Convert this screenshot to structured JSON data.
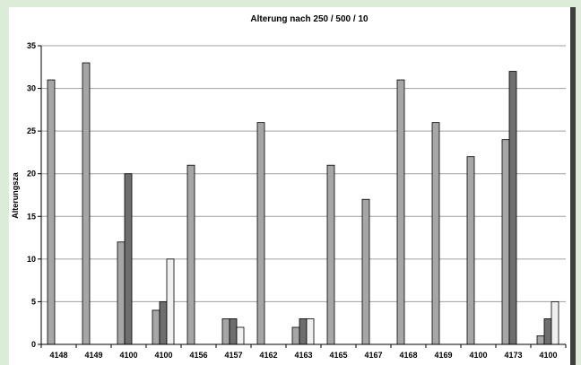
{
  "chart_data": {
    "type": "bar",
    "title": "Alterung nach 250 / 500 / 10",
    "ylabel": "Alterungsza",
    "xlabel": "",
    "ylim": [
      0,
      35
    ],
    "yticks": [
      0,
      5,
      10,
      15,
      20,
      25,
      30,
      35
    ],
    "grid": true,
    "categories": [
      "4148",
      "4149",
      "4100",
      "4100",
      "4156",
      "4157",
      "4162",
      "4163",
      "4165",
      "4167",
      "4168",
      "4169",
      "4100",
      "4173",
      "4100"
    ],
    "series": [
      {
        "values": [
          31,
          33,
          12,
          4,
          21,
          3,
          26,
          2,
          21,
          17,
          31,
          26,
          22,
          24,
          1
        ]
      },
      {
        "values": [
          0,
          0,
          20,
          5,
          0,
          3,
          0,
          3,
          0,
          0,
          0,
          0,
          0,
          32,
          3
        ]
      },
      {
        "values": [
          0,
          0,
          0,
          10,
          0,
          2,
          0,
          3,
          0,
          0,
          0,
          0,
          0,
          0,
          5
        ]
      }
    ],
    "colors": [
      "#a6a6a6",
      "#6e6e6e",
      "#f0f0f0"
    ]
  }
}
